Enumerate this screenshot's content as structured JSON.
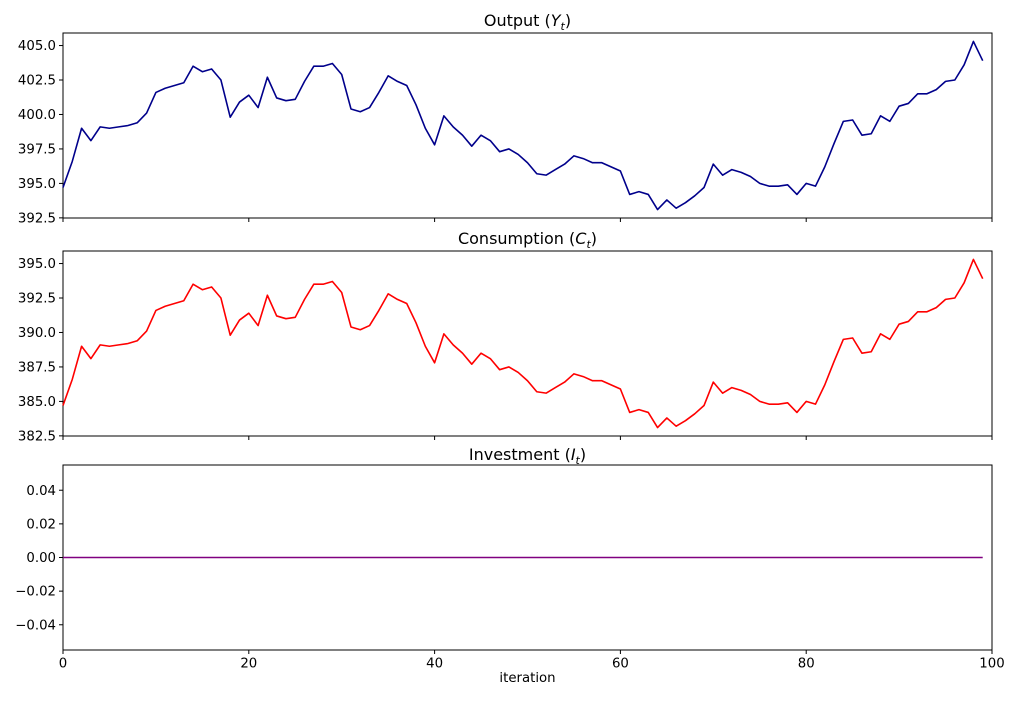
{
  "figure": {
    "background": "#ffffff",
    "xlabel": "iteration",
    "xtick_labels": [
      "0",
      "20",
      "40",
      "60",
      "80",
      "100"
    ],
    "xtick_values": [
      0,
      20,
      40,
      60,
      80,
      100
    ]
  },
  "chart_data": [
    {
      "id": "output",
      "type": "line",
      "title": "Output (Yt)",
      "title_parts": {
        "prefix": "Output (",
        "symbol": "Y",
        "subscript": "t",
        "suffix": ")"
      },
      "line_color": "#00008B",
      "grid": false,
      "legend": null,
      "xlim": [
        0,
        100
      ],
      "ylim": [
        392.49,
        405.91
      ],
      "ytick_values": [
        405.0,
        402.5,
        400.0,
        397.5,
        395.0,
        392.5
      ],
      "ytick_labels": [
        "405.0",
        "402.5",
        "400.0",
        "397.5",
        "395.0",
        "392.5"
      ],
      "show_xtick_labels": false,
      "x_values_note": "x = iteration index 0..99",
      "values": [
        394.7,
        396.6,
        399.0,
        398.1,
        399.1,
        399.0,
        399.1,
        399.2,
        399.4,
        400.1,
        401.6,
        401.9,
        402.1,
        402.3,
        403.5,
        403.1,
        403.3,
        402.5,
        399.8,
        400.9,
        401.4,
        400.5,
        402.7,
        401.2,
        401.0,
        401.1,
        402.4,
        403.5,
        403.5,
        403.7,
        402.9,
        400.4,
        400.2,
        400.5,
        401.6,
        402.8,
        402.4,
        402.1,
        400.7,
        399.0,
        397.8,
        399.9,
        399.1,
        398.5,
        397.7,
        398.5,
        398.1,
        397.3,
        397.5,
        397.1,
        396.5,
        395.7,
        395.6,
        396.0,
        396.4,
        397.0,
        396.8,
        396.5,
        396.5,
        396.2,
        395.9,
        394.2,
        394.4,
        394.2,
        393.1,
        393.8,
        393.2,
        393.6,
        394.1,
        394.7,
        396.4,
        395.6,
        396.0,
        395.8,
        395.5,
        395.0,
        394.8,
        394.8,
        394.9,
        394.2,
        395.0,
        394.8,
        396.2,
        397.9,
        399.5,
        399.6,
        398.5,
        398.6,
        399.9,
        399.5,
        400.6,
        400.8,
        401.5,
        401.5,
        401.8,
        402.4,
        402.5,
        403.6,
        405.3,
        403.9
      ]
    },
    {
      "id": "consumption",
      "type": "line",
      "title": "Consumption (Ct)",
      "title_parts": {
        "prefix": "Consumption (",
        "symbol": "C",
        "subscript": "t",
        "suffix": ")"
      },
      "line_color": "#FF0000",
      "grid": false,
      "legend": null,
      "xlim": [
        0,
        100
      ],
      "ylim": [
        382.49,
        395.91
      ],
      "ytick_values": [
        395.0,
        392.5,
        390.0,
        387.5,
        385.0,
        382.5
      ],
      "ytick_labels": [
        "395.0",
        "392.5",
        "390.0",
        "387.5",
        "385.0",
        "382.5"
      ],
      "show_xtick_labels": false,
      "x_values_note": "x = iteration index 0..99",
      "values": [
        384.7,
        386.6,
        389.0,
        388.1,
        389.1,
        389.0,
        389.1,
        389.2,
        389.4,
        390.1,
        391.6,
        391.9,
        392.1,
        392.3,
        393.5,
        393.1,
        393.3,
        392.5,
        389.8,
        390.9,
        391.4,
        390.5,
        392.7,
        391.2,
        391.0,
        391.1,
        392.4,
        393.5,
        393.5,
        393.7,
        392.9,
        390.4,
        390.2,
        390.5,
        391.6,
        392.8,
        392.4,
        392.1,
        390.7,
        389.0,
        387.8,
        389.9,
        389.1,
        388.5,
        387.7,
        388.5,
        388.1,
        387.3,
        387.5,
        387.1,
        386.5,
        385.7,
        385.6,
        386.0,
        386.4,
        387.0,
        386.8,
        386.5,
        386.5,
        386.2,
        385.9,
        384.2,
        384.4,
        384.2,
        383.1,
        383.8,
        383.2,
        383.6,
        384.1,
        384.7,
        386.4,
        385.6,
        386.0,
        385.8,
        385.5,
        385.0,
        384.8,
        384.8,
        384.9,
        384.2,
        385.0,
        384.8,
        386.2,
        387.9,
        389.5,
        389.6,
        388.5,
        388.6,
        389.9,
        389.5,
        390.6,
        390.8,
        391.5,
        391.5,
        391.8,
        392.4,
        392.5,
        393.6,
        395.3,
        393.9
      ]
    },
    {
      "id": "investment",
      "type": "line",
      "title": "Investment (It)",
      "title_parts": {
        "prefix": "Investment (",
        "symbol": "I",
        "subscript": "t",
        "suffix": ")"
      },
      "line_color": "#800080",
      "grid": false,
      "legend": null,
      "xlim": [
        0,
        100
      ],
      "ylim": [
        -0.055,
        0.055
      ],
      "ytick_values": [
        0.04,
        0.02,
        0.0,
        -0.02,
        -0.04
      ],
      "ytick_labels": [
        "0.04",
        "0.02",
        "0.00",
        "−0.02",
        "−0.04"
      ],
      "show_xtick_labels": true,
      "x_values_note": "x = iteration index 0..99",
      "values": [
        0,
        0,
        0,
        0,
        0,
        0,
        0,
        0,
        0,
        0,
        0,
        0,
        0,
        0,
        0,
        0,
        0,
        0,
        0,
        0,
        0,
        0,
        0,
        0,
        0,
        0,
        0,
        0,
        0,
        0,
        0,
        0,
        0,
        0,
        0,
        0,
        0,
        0,
        0,
        0,
        0,
        0,
        0,
        0,
        0,
        0,
        0,
        0,
        0,
        0,
        0,
        0,
        0,
        0,
        0,
        0,
        0,
        0,
        0,
        0,
        0,
        0,
        0,
        0,
        0,
        0,
        0,
        0,
        0,
        0,
        0,
        0,
        0,
        0,
        0,
        0,
        0,
        0,
        0,
        0,
        0,
        0,
        0,
        0,
        0,
        0,
        0,
        0,
        0,
        0,
        0,
        0,
        0,
        0,
        0,
        0,
        0,
        0,
        0,
        0
      ]
    }
  ]
}
